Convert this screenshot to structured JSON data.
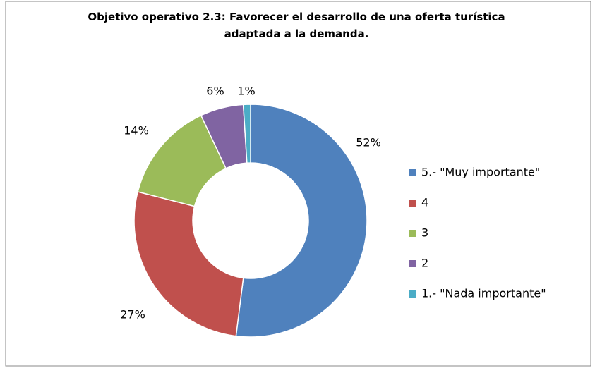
{
  "chart_data": {
    "type": "donut",
    "title": "Objetivo operativo 2.3: Favorecer el desarrollo de una oferta turística adaptada a la demanda.",
    "categories": [
      "5.- \"Muy importante\"",
      "4",
      "3",
      "2",
      "1.- \"Nada importante\""
    ],
    "values": [
      52,
      27,
      14,
      6,
      1
    ],
    "value_labels": [
      "52%",
      "27%",
      "14%",
      "6%",
      "1%"
    ],
    "colors": [
      "#4f81bd",
      "#c0504d",
      "#9bbb59",
      "#8064a2",
      "#4bacc6"
    ],
    "legend": "right"
  }
}
